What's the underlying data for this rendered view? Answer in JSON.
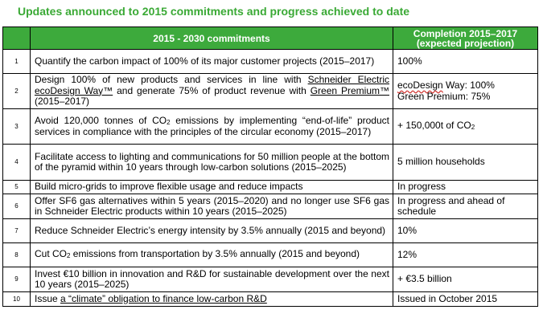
{
  "title": "Updates announced to 2015 commitments and progress achieved to date",
  "header": {
    "commitments": "2015 - 2030 commitments",
    "completion_line1": "Completion 2015–2017",
    "completion_line2": "(expected  projection)"
  },
  "rows": [
    {
      "num": "1",
      "commitment": {
        "a": "Quantify the carbon impact of 100% of its major customer projects (2015–2017)"
      },
      "completion": {
        "a": "100%"
      }
    },
    {
      "num": "2",
      "commitment": {
        "a": "Design 100% of new products and services in line with ",
        "link1": "Schneider Electric ecoDesign Way™",
        "b": " and generate 75% of product revenue with ",
        "link2": "Green Premium™",
        "c": " (2015–2017)"
      },
      "completion": {
        "eco": "ecoDesign",
        "a": " Way: 100%",
        "b": "Green Premium: 75%"
      }
    },
    {
      "num": "3",
      "commitment": {
        "a": "Avoid 120,000 tonnes of CO",
        "sub": "2",
        "b": " emissions by implementing “end-of-life” product services in compliance with the principles of the circular economy (2015–2017)"
      },
      "completion": {
        "a": "+ 150,000t of CO",
        "sub": "2"
      }
    },
    {
      "num": "4",
      "commitment": {
        "a": "Facilitate access to lighting and communications for 50 million people at the bottom of the pyramid within 10 years through low-carbon solutions (2015–2025)"
      },
      "completion": {
        "a": "5 million households"
      }
    },
    {
      "num": "5",
      "commitment": {
        "a": "Build micro-grids to improve flexible usage and reduce impacts"
      },
      "completion": {
        "a": "In progress"
      }
    },
    {
      "num": "6",
      "commitment": {
        "a": "Offer SF6 gas alternatives within 5 years (2015–2020) and no longer use SF6 gas in Schneider Electric products within 10 years (2015–2025)"
      },
      "completion": {
        "a": "In progress and ahead of schedule"
      }
    },
    {
      "num": "7",
      "commitment": {
        "a": "Reduce Schneider Electric’s energy intensity by 3.5% annually (2015 and beyond)"
      },
      "completion": {
        "a": "10%"
      }
    },
    {
      "num": "8",
      "commitment": {
        "a": "Cut CO",
        "sub": "2",
        "b": " emissions from transportation by 3.5% annually (2015 and beyond)"
      },
      "completion": {
        "a": "12%"
      }
    },
    {
      "num": "9",
      "commitment": {
        "a": "Invest €10 billion in innovation and R&D for sustainable development over the next 10 years (2015–2025)"
      },
      "completion": {
        "a": "+ €3.5 billion"
      }
    },
    {
      "num": "10",
      "commitment": {
        "a": "Issue ",
        "link1": "a “climate” obligation to finance low-carbon R&D"
      },
      "completion": {
        "a": "Issued in October 2015"
      }
    }
  ],
  "colors": {
    "title": "#3aa935",
    "header_bg": "#3daa3c",
    "header_text": "#ffffff"
  }
}
